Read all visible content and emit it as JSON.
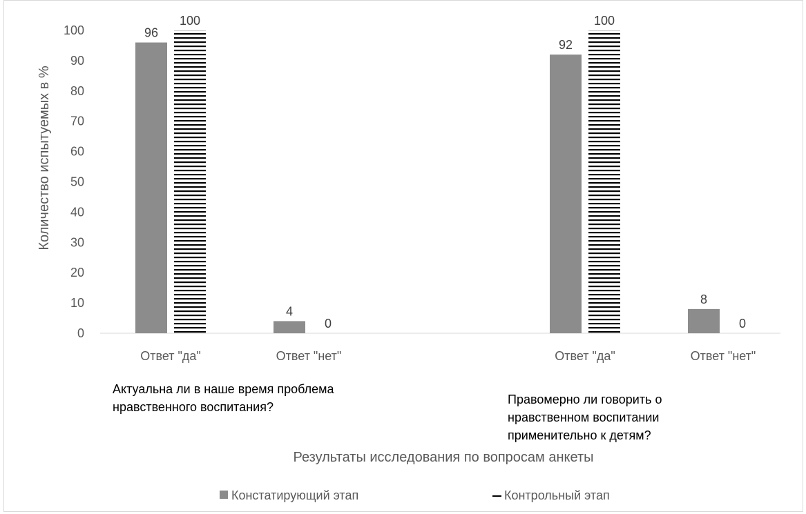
{
  "chart_data": {
    "type": "bar",
    "xlabel": "Результаты исследования по вопросам анкеты",
    "ylabel": "Количество испытуемых в %",
    "ylim": [
      0,
      100
    ],
    "yticks": [
      0,
      10,
      20,
      30,
      40,
      50,
      60,
      70,
      80,
      90,
      100
    ],
    "grid": false,
    "legend_position": "bottom",
    "groups": [
      {
        "label": [
          "Актуальна ли в наше время проблема",
          "нравственного воспитания?"
        ],
        "categories": [
          "Ответ \"да\"",
          "Ответ \"нет\""
        ]
      },
      {
        "label": [
          "Правомерно ли говорить о",
          "нравственном воспитании",
          "применительно к детям?"
        ],
        "categories": [
          "Ответ \"да\"",
          "Ответ \"нет\""
        ]
      }
    ],
    "series": [
      {
        "name": "Констатирующий этап",
        "color": "#8c8c8c",
        "pattern": "solid",
        "values": [
          96,
          4,
          92,
          8
        ]
      },
      {
        "name": "Контрольный этап",
        "color": "#000000",
        "pattern": "horizontal-stripes",
        "values": [
          100,
          0,
          100,
          0
        ]
      }
    ]
  }
}
